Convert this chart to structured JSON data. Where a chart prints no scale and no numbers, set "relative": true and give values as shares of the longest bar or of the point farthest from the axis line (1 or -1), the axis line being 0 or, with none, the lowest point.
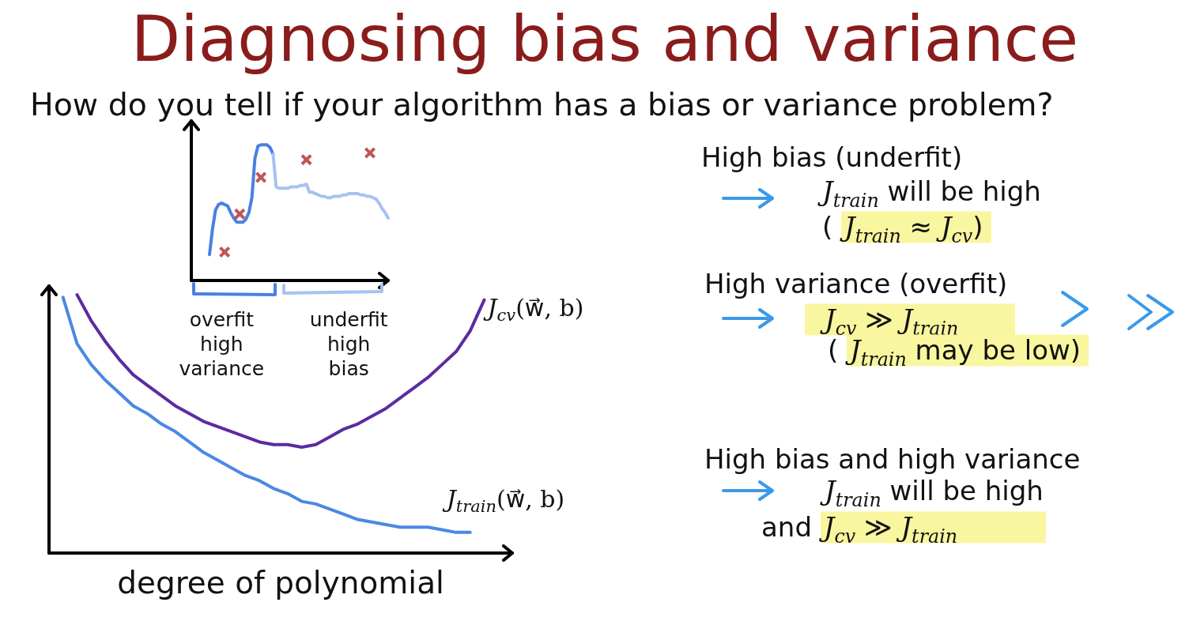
{
  "chart_data": [
    {
      "type": "line",
      "xlabel": "degree of polynomial",
      "relative": true,
      "marker": "none",
      "categories": [
        null,
        null,
        null,
        null,
        null,
        null,
        null,
        null,
        null,
        null,
        null,
        null,
        null,
        null,
        null,
        null,
        null,
        null,
        null,
        null,
        null,
        null,
        null,
        null,
        null,
        null,
        null,
        null,
        null,
        null,
        null,
        null,
        null,
        null
      ],
      "series": [
        {
          "name": "J$_{cv}$(w⃗, b)",
          "color": "#5a2ca0",
          "values": [
            null,
            null,
            1,
            0.9,
            0.82,
            0.75,
            0.69,
            0.65,
            0.61,
            0.57,
            0.54,
            0.51,
            0.49,
            0.47,
            0.45,
            0.43,
            0.42,
            0.42,
            0.41,
            0.42,
            0.45,
            0.48,
            0.5,
            0.53,
            0.56,
            0.6,
            0.64,
            0.68,
            0.73,
            0.78,
            0.86,
            0.98,
            null,
            null
          ]
        },
        {
          "name": "J$_{train}$(w⃗, b)",
          "color": "#4a88e4",
          "values": [
            null,
            0.99,
            0.81,
            0.73,
            0.67,
            0.62,
            0.57,
            0.54,
            0.5,
            0.47,
            0.43,
            0.39,
            0.36,
            0.33,
            0.3,
            0.28,
            0.25,
            0.23,
            0.2,
            0.19,
            0.17,
            0.15,
            0.13,
            0.12,
            0.11,
            0.1,
            0.1,
            0.1,
            0.09,
            0.08,
            0.08,
            null,
            null,
            null
          ]
        }
      ]
    },
    {
      "type": "line",
      "title": "Diagnosing bias and variance",
      "subtitle": "How do you tell if your algorithm has a bias or variance problem?",
      "relative": true,
      "marker": "none",
      "categories": [
        null,
        null,
        null,
        null,
        null,
        null,
        null,
        null,
        null,
        null,
        "overfit\nhigh\nvariance",
        null,
        null,
        null,
        null,
        null,
        null,
        null,
        null,
        null,
        null,
        null,
        null,
        null,
        null,
        null,
        null,
        null,
        null,
        null,
        null,
        null,
        null,
        null,
        null,
        null,
        null,
        null,
        null,
        null,
        null,
        null,
        null,
        null,
        null,
        null,
        null,
        null,
        null,
        null,
        null,
        null,
        "underfit\nhigh\nbias",
        null,
        null,
        null,
        null,
        null,
        null,
        null,
        null,
        null,
        null,
        null,
        null,
        null
      ],
      "series": [
        {
          "color": "#4a80e2",
          "values": [
            null,
            null,
            null,
            null,
            null,
            null,
            0.19,
            0.38,
            0.52,
            0.56,
            0.57,
            0.56,
            0.55,
            0.5,
            0.46,
            0.43,
            0.43,
            0.43,
            0.45,
            0.5,
            0.61,
            0.9,
            0.99,
            1,
            1,
            1,
            0.98,
            0.93,
            null,
            null,
            null,
            null,
            null,
            null,
            null,
            null,
            null,
            null,
            null,
            null,
            null,
            null,
            null,
            null,
            null,
            null,
            null,
            null,
            null,
            null,
            null,
            null,
            null,
            null,
            null,
            null,
            null,
            null,
            null,
            null,
            null,
            null,
            null,
            null,
            null,
            null
          ]
        },
        {
          "color": "#a6c2f0",
          "values": [
            null,
            null,
            null,
            null,
            null,
            null,
            null,
            null,
            null,
            null,
            null,
            null,
            null,
            null,
            null,
            null,
            null,
            null,
            null,
            null,
            null,
            null,
            null,
            null,
            null,
            null,
            null,
            0.93,
            0.69,
            0.68,
            0.68,
            0.68,
            0.68,
            0.69,
            0.69,
            0.69,
            0.7,
            0.7,
            0.71,
            0.65,
            0.65,
            0.64,
            0.63,
            0.62,
            0.62,
            0.61,
            0.61,
            0.62,
            0.62,
            0.62,
            0.63,
            0.63,
            0.64,
            0.64,
            0.64,
            0.64,
            0.63,
            0.63,
            0.62,
            0.62,
            0.61,
            0.6,
            0.57,
            0.53,
            0.5,
            0.46
          ]
        },
        {
          "type": "scatter",
          "marker": "cross",
          "color": "#b02a2a",
          "values": [
            null,
            null,
            null,
            null,
            null,
            null,
            null,
            null,
            null,
            null,
            null,
            0.21,
            null,
            null,
            null,
            null,
            0.49,
            null,
            null,
            null,
            null,
            null,
            null,
            0.76,
            null,
            null,
            null,
            null,
            null,
            null,
            null,
            null,
            null,
            null,
            null,
            null,
            null,
            null,
            0.89,
            null,
            null,
            null,
            null,
            null,
            null,
            null,
            null,
            null,
            null,
            null,
            null,
            null,
            null,
            null,
            null,
            null,
            null,
            null,
            null,
            0.94,
            null,
            null,
            null,
            null,
            null,
            null
          ]
        }
      ]
    },
    {
      "type": "other",
      "annotations": [
        "High bias (underfit)",
        "J$_{train}$ will be high",
        "( J$_{train}$ ≈ J$_{cv}$)",
        "High variance (overfit)",
        "J$_{cv}$ ≫ J$_{train}$",
        "( J$_{train}$ may be low)",
        "High bias and high variance",
        "J$_{train}$ will be high",
        "and J$_{cv}$ ≫ J$_{train}$"
      ]
    }
  ]
}
